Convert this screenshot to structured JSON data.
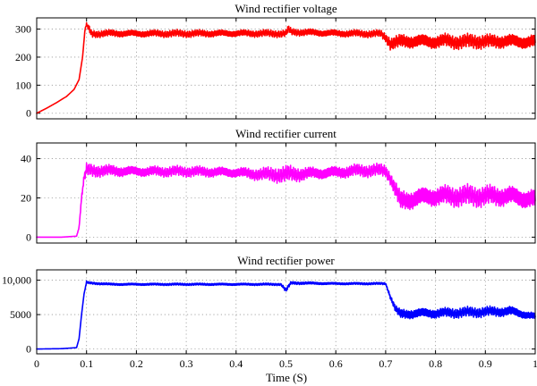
{
  "chart_data": [
    {
      "type": "line",
      "title": "Wind rectifier voltage",
      "xlim": [
        0,
        1
      ],
      "ylim": [
        -20,
        340
      ],
      "yticks": [
        0,
        100,
        200,
        300
      ],
      "ytick_labels": [
        "0",
        "100",
        "200",
        "300"
      ],
      "grid": true,
      "series": [
        {
          "color": "#ff0000",
          "x": [
            0,
            0.02,
            0.04,
            0.06,
            0.075,
            0.085,
            0.092,
            0.097,
            0.1,
            0.105,
            0.11,
            0.15,
            0.2,
            0.3,
            0.4,
            0.5,
            0.505,
            0.51,
            0.6,
            0.69,
            0.7,
            0.71,
            0.73,
            0.76,
            0.79,
            0.82,
            0.85,
            0.88,
            0.91,
            0.94,
            0.97,
            1.0
          ],
          "y": [
            0,
            18,
            38,
            60,
            85,
            120,
            200,
            300,
            315,
            300,
            283,
            285,
            284,
            284,
            285,
            284,
            300,
            290,
            285,
            283,
            270,
            250,
            255,
            258,
            255,
            258,
            254,
            257,
            255,
            258,
            255,
            255
          ],
          "ripple": [
            0,
            0,
            0,
            0,
            0,
            0,
            0,
            3,
            6,
            12,
            12,
            12,
            12,
            12,
            12,
            12,
            12,
            12,
            12,
            12,
            15,
            22,
            24,
            24,
            24,
            24,
            24,
            24,
            24,
            24,
            24,
            24
          ]
        }
      ]
    },
    {
      "type": "line",
      "title": "Wind rectifier current",
      "xlim": [
        0,
        1
      ],
      "ylim": [
        -3,
        48
      ],
      "yticks": [
        0,
        20,
        40
      ],
      "ytick_labels": [
        "0",
        "20",
        "40"
      ],
      "grid": true,
      "series": [
        {
          "color": "#ff00ff",
          "x": [
            0,
            0.05,
            0.08,
            0.085,
            0.09,
            0.095,
            0.1,
            0.11,
            0.2,
            0.3,
            0.4,
            0.45,
            0.5,
            0.55,
            0.6,
            0.65,
            0.7,
            0.71,
            0.72,
            0.73,
            0.76,
            0.8,
            0.85,
            0.9,
            0.95,
            1.0
          ],
          "y": [
            0,
            0,
            0.5,
            5,
            20,
            30,
            34,
            34,
            33.5,
            33.5,
            33,
            32,
            32,
            32.5,
            33,
            34,
            34,
            30,
            24,
            18,
            20,
            21,
            21,
            21,
            21,
            19
          ],
          "ripple": [
            0,
            0,
            0,
            0.5,
            1,
            2,
            3,
            3,
            2.5,
            2.5,
            2.5,
            3,
            4,
            3,
            3,
            3,
            3,
            3,
            4,
            5,
            5,
            5,
            5,
            5,
            5,
            5
          ]
        }
      ]
    },
    {
      "type": "line",
      "title": "Wind rectifier power",
      "xlim": [
        0,
        1
      ],
      "ylim": [
        -700,
        11500
      ],
      "yticks": [
        0,
        5000,
        10000
      ],
      "ytick_labels": [
        "0",
        "5000",
        "10,000"
      ],
      "grid": true,
      "series": [
        {
          "color": "#0000ff",
          "x": [
            0,
            0.05,
            0.08,
            0.085,
            0.09,
            0.095,
            0.1,
            0.105,
            0.15,
            0.2,
            0.3,
            0.4,
            0.49,
            0.5,
            0.51,
            0.6,
            0.7,
            0.71,
            0.72,
            0.73,
            0.76,
            0.8,
            0.85,
            0.9,
            0.95,
            1.0
          ],
          "y": [
            0,
            50,
            200,
            1500,
            5000,
            8000,
            9700,
            9600,
            9400,
            9400,
            9400,
            9400,
            9400,
            8500,
            9600,
            9500,
            9500,
            7500,
            5800,
            5000,
            5200,
            5200,
            5300,
            5400,
            5500,
            4700
          ],
          "ripple": [
            0,
            0,
            0,
            0,
            0,
            0,
            150,
            150,
            150,
            150,
            150,
            150,
            150,
            300,
            200,
            150,
            150,
            300,
            500,
            700,
            700,
            700,
            700,
            700,
            700,
            500
          ]
        }
      ]
    }
  ],
  "x_axis": {
    "label": "Time (S)",
    "ticks": [
      0,
      0.1,
      0.2,
      0.3,
      0.4,
      0.5,
      0.6,
      0.7,
      0.8,
      0.9,
      1
    ],
    "tick_labels": [
      "0",
      "0.1",
      "0.2",
      "0.3",
      "0.4",
      "0.5",
      "0.6",
      "0.7",
      "0.8",
      "0.9",
      "1"
    ]
  }
}
